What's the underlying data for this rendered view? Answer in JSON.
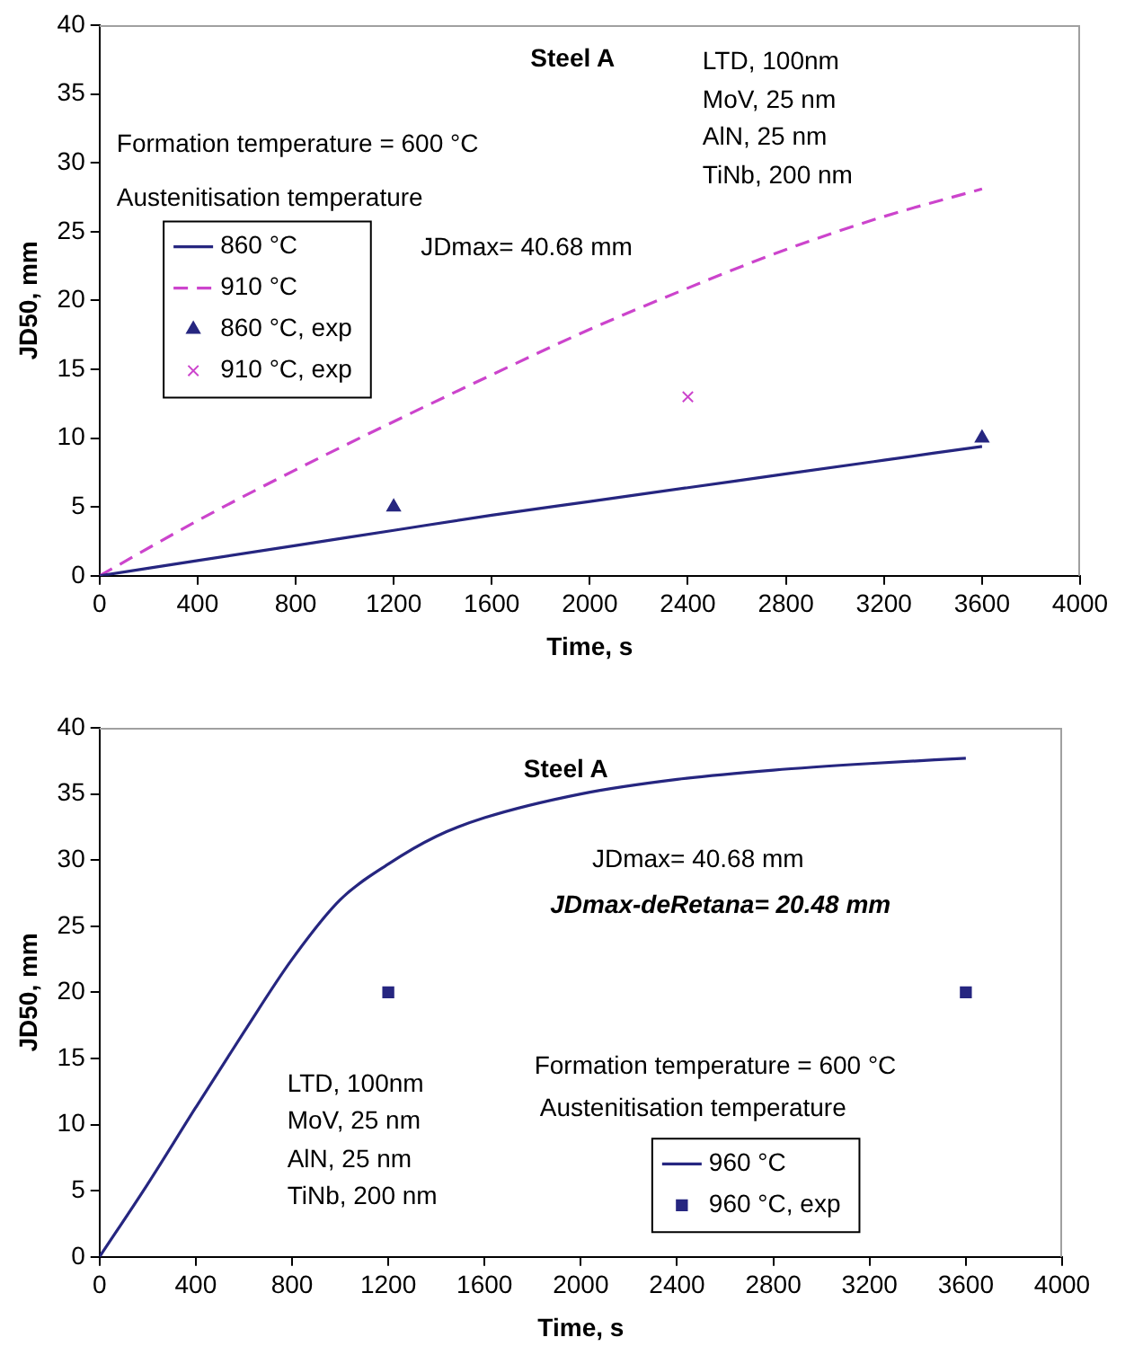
{
  "chart_data": [
    {
      "type": "line",
      "xlabel": "Time, s",
      "ylabel": "JD50, mm",
      "xlim": [
        0,
        4000
      ],
      "xticks": [
        0,
        400,
        800,
        1200,
        1600,
        2000,
        2400,
        2800,
        3200,
        3600,
        4000
      ],
      "ylim": [
        0,
        40
      ],
      "yticks": [
        0,
        5,
        10,
        15,
        20,
        25,
        30,
        35,
        40
      ],
      "grid": false,
      "legend": "left",
      "series": [
        {
          "name": "860 °C",
          "type": "line",
          "color": "#262680",
          "marker": "none",
          "line_style": "solid",
          "x": [
            0,
            400,
            800,
            1200,
            1600,
            2000,
            2400,
            2800,
            3200,
            3600
          ],
          "values": [
            0,
            1.1,
            2.2,
            3.3,
            4.4,
            5.4,
            6.4,
            7.4,
            8.4,
            9.4
          ]
        },
        {
          "name": "910 °C",
          "type": "line",
          "color": "#cc44cc",
          "marker": "none",
          "line_style": "dashed",
          "x": [
            0,
            400,
            800,
            1200,
            1600,
            2000,
            2400,
            2800,
            3200,
            3600
          ],
          "values": [
            0,
            4,
            7.7,
            11.2,
            14.6,
            17.9,
            20.9,
            23.7,
            26.1,
            28.1
          ]
        },
        {
          "name": "860 °C, exp",
          "type": "scatter",
          "color": "#262680",
          "marker": "triangle",
          "x": [
            1200,
            3600
          ],
          "values": [
            5,
            10
          ]
        },
        {
          "name": "910 °C, exp",
          "type": "scatter",
          "color": "#cc44cc",
          "marker": "cross",
          "x": [
            2400
          ],
          "values": [
            13
          ]
        }
      ],
      "annotations": [
        "Steel A",
        "LTD, 100nm",
        "MoV, 25 nm",
        "AlN, 25 nm",
        "TiNb, 200 nm",
        "Formation temperature = 600 °C",
        "Austenitisation temperature",
        "JDmax= 40.68 mm"
      ]
    },
    {
      "type": "line",
      "xlabel": "Time, s",
      "ylabel": "JD50, mm",
      "xlim": [
        0,
        4000
      ],
      "xticks": [
        0,
        400,
        800,
        1200,
        1600,
        2000,
        2400,
        2800,
        3200,
        3600,
        4000
      ],
      "ylim": [
        0,
        40
      ],
      "yticks": [
        0,
        5,
        10,
        15,
        20,
        25,
        30,
        35,
        40
      ],
      "grid": false,
      "legend": "bottom",
      "series": [
        {
          "name": "960 °C",
          "type": "line",
          "color": "#262680",
          "marker": "none",
          "line_style": "solid",
          "x": [
            0,
            200,
            400,
            600,
            800,
            1000,
            1200,
            1400,
            1600,
            2000,
            2400,
            2800,
            3200,
            3600
          ],
          "values": [
            0,
            5.5,
            11.3,
            17,
            22.5,
            27,
            29.7,
            31.8,
            33.2,
            35,
            36.1,
            36.8,
            37.3,
            37.7
          ]
        },
        {
          "name": "960 °C, exp",
          "type": "scatter",
          "color": "#262680",
          "marker": "square",
          "x": [
            1200,
            3600
          ],
          "values": [
            20,
            20
          ]
        }
      ],
      "annotations": [
        "Steel A",
        "JDmax= 40.68 mm",
        "JDmax-deRetana= 20.48 mm",
        "LTD, 100nm",
        "MoV, 25 nm",
        "AlN, 25 nm",
        "TiNb, 200 nm",
        "Formation temperature = 600 °C",
        "Austenitisation temperature"
      ]
    }
  ]
}
